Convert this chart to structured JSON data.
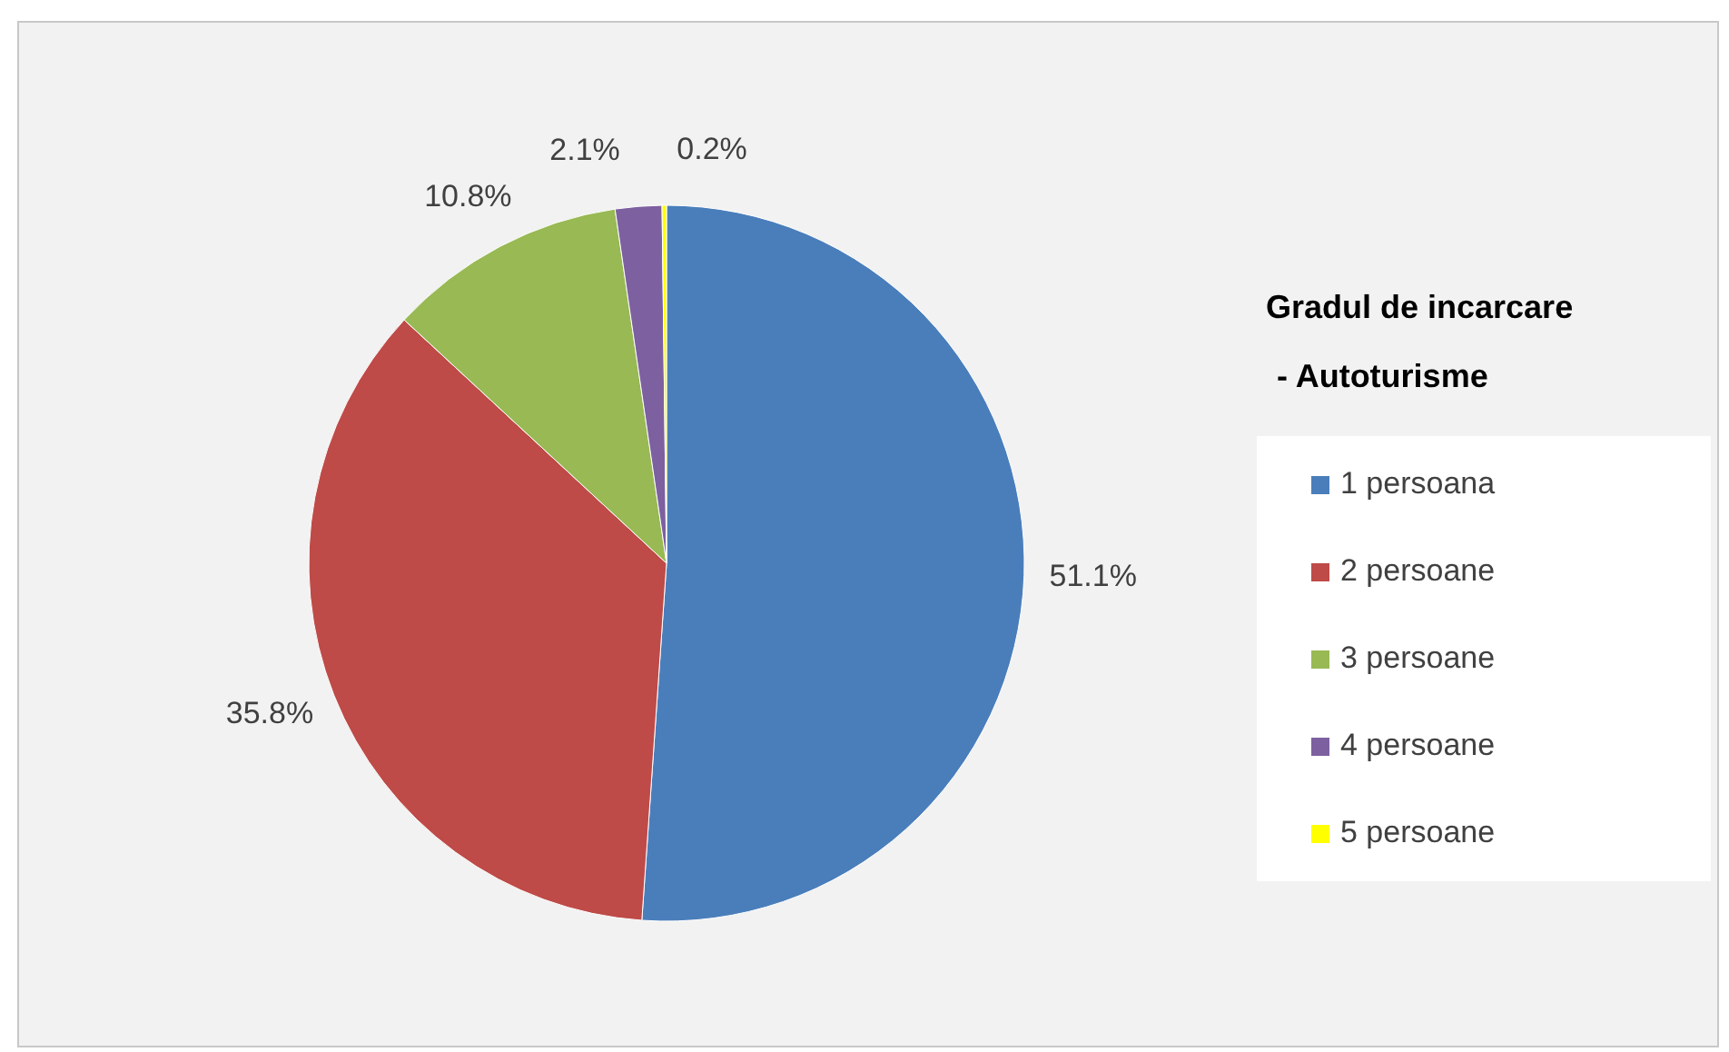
{
  "chart_data": {
    "type": "pie",
    "legend_title": "Gradul de incarcare - Autoturisme",
    "categories": [
      "1 persoana",
      "2 persoane",
      "3 persoane",
      "4 persoane",
      "5 persoane"
    ],
    "values": [
      51.1,
      35.8,
      10.8,
      2.1,
      0.2
    ],
    "colors": [
      "#4a7ebb",
      "#be4b48",
      "#98b954",
      "#7d60a0",
      "#ffff00"
    ],
    "value_labels": [
      "51.1%",
      "35.8%",
      "10.8%",
      "2.1%",
      "0.2%"
    ],
    "legend": "right"
  }
}
